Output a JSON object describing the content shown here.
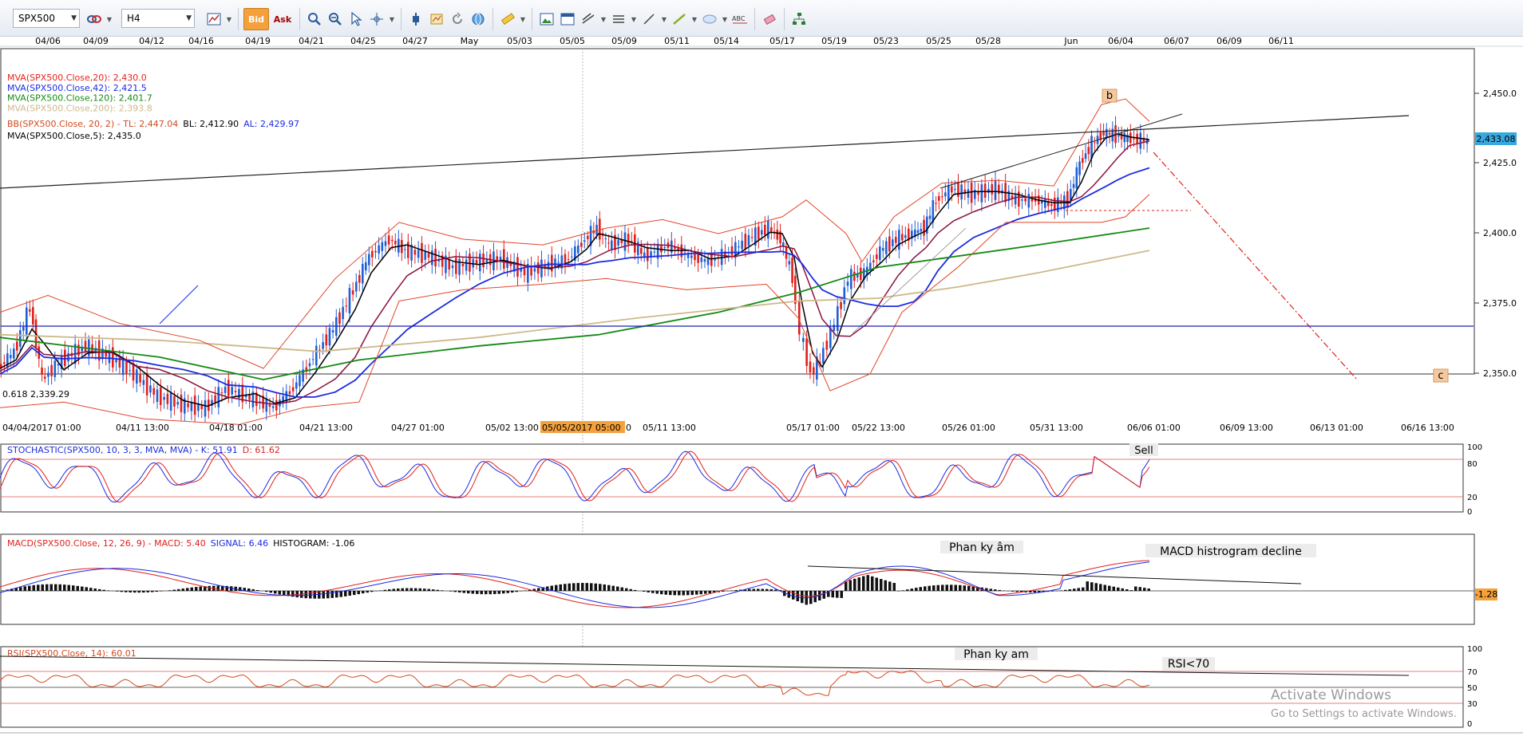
{
  "toolbar": {
    "symbol": "SPX500",
    "timeframe": "H4",
    "bid_label": "Bid",
    "ask_label": "Ask",
    "icons": [
      "chart-type-icon",
      "zoom-in-icon",
      "zoom-out-icon",
      "cursor-icon",
      "crosshair-icon",
      "indicator-icon",
      "template-icon",
      "refresh-icon",
      "globe-icon",
      "ruler-icon",
      "image-icon",
      "window-icon",
      "line-tools-icon",
      "hline-icon",
      "trend-line-icon",
      "ellipse-icon",
      "text-icon",
      "eraser-icon",
      "hierarchy-icon"
    ]
  },
  "top_dates": [
    "04/06",
    "04/09",
    "04/12",
    "04/16",
    "04/19",
    "04/21",
    "04/25",
    "04/27",
    "May",
    "05/03",
    "05/05",
    "05/09",
    "05/11",
    "05/14",
    "05/17",
    "05/19",
    "05/23",
    "05/25",
    "05/28",
    "Jun",
    "06/04",
    "06/07",
    "06/09",
    "06/11"
  ],
  "legend": [
    {
      "text": "MVA(SPX500.Close,20): 2,430.0",
      "color": "#e8221b"
    },
    {
      "text": "MVA(SPX500.Close,42): 2,421.5",
      "color": "#1b2be0"
    },
    {
      "text": "MVA(SPX500.Close,120): 2,401.7",
      "color": "#138a13"
    },
    {
      "text": "MVA(SPX500.Close,200): 2,393.8",
      "color": "#cdb98a"
    },
    {
      "text": "MVA(SPX500.Close,5): 2,435.0",
      "color": "#000000"
    }
  ],
  "bb_legend": {
    "name": "BB(SPX500.Close, 20, 2) - ",
    "tl": "TL: 2,447.04",
    "bl": "BL: 2,412.90",
    "al": "AL: 2,429.97"
  },
  "price_axis": [
    "2,450.0",
    "2,425.0",
    "2,400.0",
    "2,375.0",
    "2,350.0"
  ],
  "current_price": "2,433.08",
  "fib_label": "0.618 2,339.29",
  "wave_labels": {
    "b": "b",
    "c": "c"
  },
  "bottom_dates": [
    "04/04/2017 01:00",
    "04/11 13:00",
    "04/18 01:00",
    "04/21 13:00",
    "04/27 01:00",
    "05/02 13:00",
    "05/11 13:00",
    "05/17 01:00",
    "05/22 13:00",
    "05/26 01:00",
    "05/31 13:00",
    "06/06 01:00",
    "06/09 13:00",
    "06/13 01:00",
    "06/16 13:00"
  ],
  "crosshair_date": "05/05/2017 05:00",
  "crosshair_date_tail": "0",
  "stochastic": {
    "label": "STOCHASTIC(SPX500, 10, 3, 3, MVA, MVA) - ",
    "k": "K: 51.91",
    "d": "D: 61.62",
    "axis": [
      "100",
      "80",
      "20",
      "0"
    ],
    "note": "Sell"
  },
  "macd": {
    "label": "MACD(SPX500.Close, 12, 26, 9) - ",
    "macd": "MACD: 5.40",
    "signal": "SIGNAL: 6.46",
    "histogram": "HISTOGRAM: -1.06",
    "value_badge": "-1.28",
    "note_divergence": "Phan ky âm",
    "note_histogram": "MACD histrogram decline"
  },
  "rsi": {
    "label": "RSI(SPX500.Close, 14): 60.01",
    "axis": [
      "100",
      "70",
      "50",
      "30",
      "0"
    ],
    "note_divergence": "Phan ky am",
    "note_level": "RSI<70"
  },
  "watermark": {
    "title": "Activate Windows",
    "subtitle": "Go to Settings to activate Windows."
  },
  "colors": {
    "bull": "#1f5fd6",
    "bear": "#e0201b",
    "price_badge": "#38a8df",
    "accent": "#f5a13b",
    "wave_box": "#f5c9a0"
  }
}
